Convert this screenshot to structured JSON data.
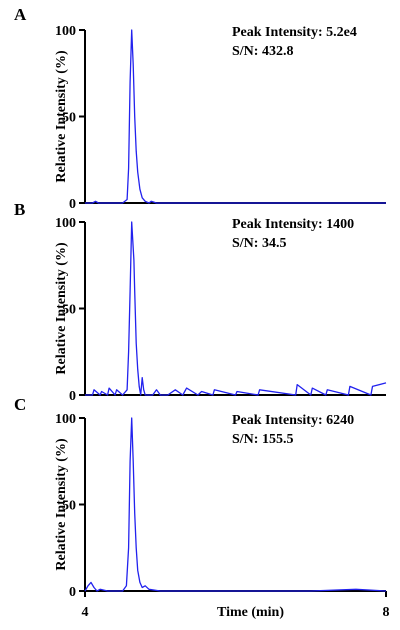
{
  "chart_data": [
    {
      "type": "line",
      "panel": "A",
      "ylabel": "Relative Intensity (%)",
      "xlim": [
        4,
        8
      ],
      "ylim": [
        0,
        100
      ],
      "yticks": [
        0,
        50,
        100
      ],
      "annotation": [
        "Peak Intensity: 5.2e4",
        "S/N: 432.8"
      ],
      "series": [
        {
          "color": "#2222ee",
          "x": [
            4.0,
            4.1,
            4.14,
            4.18,
            4.3,
            4.5,
            4.56,
            4.58,
            4.6,
            4.62,
            4.64,
            4.66,
            4.68,
            4.7,
            4.73,
            4.76,
            4.8,
            4.85,
            4.88,
            4.95,
            5.1,
            5.3,
            5.6,
            6.0,
            7.0,
            8.0
          ],
          "y": [
            0,
            0,
            1,
            0,
            0,
            0,
            2,
            20,
            70,
            100,
            80,
            50,
            30,
            18,
            8,
            3,
            1,
            0,
            1,
            0,
            0,
            0,
            0,
            0,
            0,
            0
          ]
        }
      ]
    },
    {
      "type": "line",
      "panel": "B",
      "ylabel": "Relative Intensity (%)",
      "xlim": [
        4,
        8
      ],
      "ylim": [
        0,
        100
      ],
      "yticks": [
        0,
        50,
        100
      ],
      "annotation": [
        "Peak Intensity: 1400",
        "S/N: 34.5"
      ],
      "series": [
        {
          "color": "#2222ee",
          "x": [
            4.0,
            4.1,
            4.12,
            4.2,
            4.22,
            4.3,
            4.32,
            4.4,
            4.42,
            4.5,
            4.56,
            4.58,
            4.6,
            4.62,
            4.64,
            4.65,
            4.66,
            4.68,
            4.7,
            4.72,
            4.74,
            4.76,
            4.78,
            4.8,
            4.9,
            4.95,
            5.0,
            5.1,
            5.2,
            5.3,
            5.35,
            5.5,
            5.55,
            5.7,
            5.72,
            6.0,
            6.02,
            6.3,
            6.32,
            6.8,
            6.82,
            7.0,
            7.02,
            7.2,
            7.22,
            7.5,
            7.52,
            7.8,
            7.82,
            8.0
          ],
          "y": [
            0,
            0,
            3,
            0,
            2,
            0,
            4,
            0,
            3,
            0,
            3,
            25,
            60,
            100,
            85,
            78,
            60,
            30,
            15,
            5,
            0,
            10,
            3,
            0,
            0,
            3,
            0,
            0,
            3,
            0,
            4,
            0,
            2,
            0,
            3,
            0,
            2,
            0,
            3,
            0,
            6,
            0,
            4,
            0,
            3,
            0,
            5,
            0,
            5,
            7
          ]
        }
      ]
    },
    {
      "type": "line",
      "panel": "C",
      "ylabel": "Relative Intensity (%)",
      "xlabel": "Time (min)",
      "xlim": [
        4,
        8
      ],
      "ylim": [
        0,
        100
      ],
      "yticks": [
        0,
        50,
        100
      ],
      "xticks": [
        4,
        8
      ],
      "annotation": [
        "Peak Intensity: 6240",
        "S/N: 155.5"
      ],
      "series": [
        {
          "color": "#2222ee",
          "x": [
            4.0,
            4.04,
            4.08,
            4.12,
            4.16,
            4.2,
            4.3,
            4.5,
            4.55,
            4.58,
            4.6,
            4.62,
            4.64,
            4.66,
            4.68,
            4.7,
            4.73,
            4.76,
            4.8,
            4.85,
            5.0,
            5.2,
            6.5,
            7.0,
            7.6,
            8.0
          ],
          "y": [
            0,
            3,
            5,
            2,
            0,
            1,
            0,
            0,
            3,
            25,
            75,
            100,
            75,
            45,
            25,
            12,
            5,
            2,
            3,
            1,
            0,
            0,
            0,
            0,
            1,
            0
          ]
        }
      ]
    }
  ]
}
